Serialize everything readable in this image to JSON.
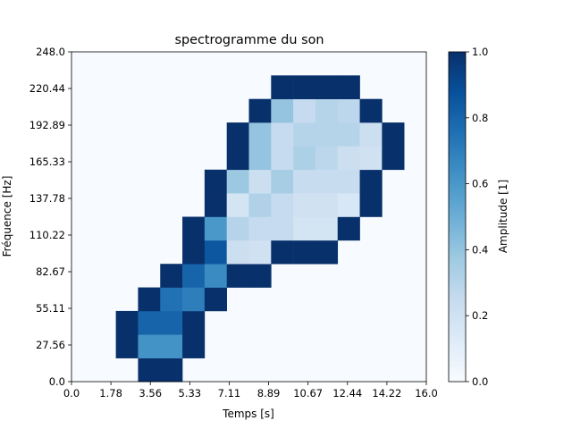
{
  "chart_data": {
    "type": "heatmap",
    "title": "spectrogramme du son",
    "xlabel": "Temps [s]",
    "ylabel": "Fréquence [Hz]",
    "colorbar_label": "Amplitude [1]",
    "colormap": "Blues",
    "xlim": [
      0.0,
      16.0
    ],
    "ylim": [
      0.0,
      248.0
    ],
    "clim": [
      0.0,
      1.0
    ],
    "x_tick_labels": [
      "0.0",
      "1.78",
      "3.56",
      "5.33",
      "7.11",
      "8.89",
      "10.67",
      "12.44",
      "14.22",
      "16.0"
    ],
    "y_tick_labels": [
      "0.0",
      "27.56",
      "55.11",
      "82.67",
      "110.22",
      "137.78",
      "165.33",
      "192.89",
      "220.44",
      "248.0"
    ],
    "colorbar_tick_labels": [
      "0.0",
      "0.2",
      "0.4",
      "0.6",
      "0.8",
      "1.0"
    ],
    "grid": [
      [
        0,
        0,
        0,
        1,
        1,
        0,
        0,
        0,
        0,
        0,
        0,
        0,
        0,
        0,
        0,
        0
      ],
      [
        0,
        0,
        1,
        0.62,
        0.62,
        1,
        0,
        0,
        0,
        0,
        0,
        0,
        0,
        0,
        0,
        0
      ],
      [
        0,
        0,
        1,
        0.8,
        0.8,
        1,
        0,
        0,
        0,
        0,
        0,
        0,
        0,
        0,
        0,
        0
      ],
      [
        0,
        0,
        0,
        1,
        0.75,
        0.7,
        1,
        0,
        0,
        0,
        0,
        0,
        0,
        0,
        0,
        0
      ],
      [
        0,
        0,
        0,
        0,
        1,
        0.8,
        0.65,
        1,
        1,
        0,
        0,
        0,
        0,
        0,
        0,
        0
      ],
      [
        0,
        0,
        0,
        0,
        0,
        1,
        0.85,
        0.22,
        0.2,
        1,
        1,
        1,
        0,
        0,
        0,
        0
      ],
      [
        0,
        0,
        0,
        0,
        0,
        1,
        0.6,
        0.3,
        0.25,
        0.25,
        0.18,
        0.18,
        1,
        0,
        0,
        0
      ],
      [
        0,
        0,
        0,
        0,
        0,
        0,
        1,
        0.18,
        0.32,
        0.25,
        0.2,
        0.2,
        0.16,
        1,
        0,
        0
      ],
      [
        0,
        0,
        0,
        0,
        0,
        0,
        1,
        0.38,
        0.22,
        0.35,
        0.24,
        0.24,
        0.24,
        1,
        0,
        0
      ],
      [
        0,
        0,
        0,
        0,
        0,
        0,
        0,
        1,
        0.4,
        0.25,
        0.33,
        0.28,
        0.22,
        0.2,
        1,
        0
      ],
      [
        0,
        0,
        0,
        0,
        0,
        0,
        0,
        1,
        0.4,
        0.25,
        0.3,
        0.3,
        0.3,
        0.22,
        1,
        0
      ],
      [
        0,
        0,
        0,
        0,
        0,
        0,
        0,
        0,
        1,
        0.4,
        0.25,
        0.3,
        0.28,
        1,
        0,
        0
      ],
      [
        0,
        0,
        0,
        0,
        0,
        0,
        0,
        0,
        0,
        1,
        1,
        1,
        1,
        0,
        0,
        0
      ],
      [
        0,
        0,
        0,
        0,
        0,
        0,
        0,
        0,
        0,
        0,
        0,
        0,
        0,
        0,
        0,
        0
      ]
    ]
  }
}
